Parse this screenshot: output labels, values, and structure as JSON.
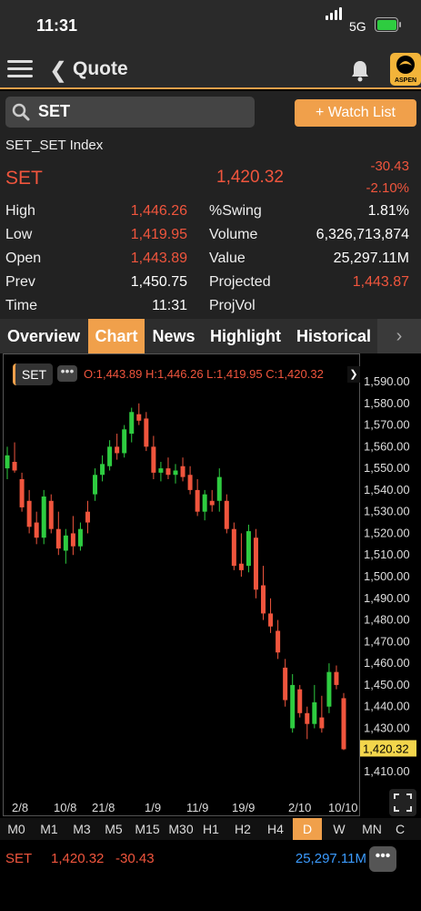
{
  "status": {
    "time": "11:31",
    "network": "5G"
  },
  "nav": {
    "title": "Quote",
    "logo_text": "ASPEN"
  },
  "search": {
    "value": "SET"
  },
  "watch_button": "+ Watch List",
  "quote": {
    "index_name": "SET_SET Index",
    "symbol": "SET",
    "last": "1,420.32",
    "change": "-30.43",
    "change_pct": "-2.10%",
    "left": [
      {
        "label": "High",
        "value": "1,446.26",
        "color": "red"
      },
      {
        "label": "Low",
        "value": "1,419.95",
        "color": "red"
      },
      {
        "label": "Open",
        "value": "1,443.89",
        "color": "red"
      },
      {
        "label": "Prev",
        "value": "1,450.75",
        "color": "white"
      },
      {
        "label": "Time",
        "value": "11:31",
        "color": "white"
      }
    ],
    "right": [
      {
        "label": "%Swing",
        "value": "1.81%",
        "color": "white"
      },
      {
        "label": "Volume",
        "value": "6,326,713,874",
        "color": "white"
      },
      {
        "label": "Value",
        "value": "25,297.11M",
        "color": "white"
      },
      {
        "label": "Projected",
        "value": "1,443.87",
        "color": "red"
      },
      {
        "label": "ProjVol",
        "value": "",
        "color": "white"
      }
    ]
  },
  "tabs": [
    "Overview",
    "Chart",
    "News",
    "Highlight",
    "Historical"
  ],
  "active_tab": "Chart",
  "legend": {
    "symbol": "SET",
    "more": "•••",
    "ohlc": "O:1,443.89 H:1,446.26 L:1,419.95 C:1,420.32"
  },
  "chart_data": {
    "type": "candlestick",
    "ylim": [
      1400,
      1595
    ],
    "y_ticks": [
      "1,590.00",
      "1,580.00",
      "1,570.00",
      "1,560.00",
      "1,550.00",
      "1,540.00",
      "1,530.00",
      "1,520.00",
      "1,510.00",
      "1,500.00",
      "1,490.00",
      "1,480.00",
      "1,470.00",
      "1,460.00",
      "1,450.00",
      "1,440.00",
      "1,430.00",
      "1,420.00",
      "1,410.00"
    ],
    "x_ticks": [
      "2/8",
      "10/8",
      "21/8",
      "1/9",
      "11/9",
      "19/9",
      "2/10",
      "10/10"
    ],
    "last_price_label": "1,420.32",
    "colors": {
      "up": "#2ecc40",
      "down": "#f0553d",
      "last_label_bg": "#f3d64c"
    },
    "candles": [
      {
        "o": 1550,
        "h": 1560,
        "l": 1545,
        "c": 1556
      },
      {
        "o": 1553,
        "h": 1562,
        "l": 1548,
        "c": 1549
      },
      {
        "o": 1545,
        "h": 1548,
        "l": 1530,
        "c": 1532
      },
      {
        "o": 1535,
        "h": 1540,
        "l": 1520,
        "c": 1523
      },
      {
        "o": 1525,
        "h": 1530,
        "l": 1515,
        "c": 1518
      },
      {
        "o": 1518,
        "h": 1540,
        "l": 1515,
        "c": 1537
      },
      {
        "o": 1535,
        "h": 1538,
        "l": 1520,
        "c": 1522
      },
      {
        "o": 1522,
        "h": 1530,
        "l": 1510,
        "c": 1513
      },
      {
        "o": 1512,
        "h": 1522,
        "l": 1506,
        "c": 1519
      },
      {
        "o": 1520,
        "h": 1528,
        "l": 1510,
        "c": 1514
      },
      {
        "o": 1514,
        "h": 1525,
        "l": 1512,
        "c": 1522
      },
      {
        "o": 1530,
        "h": 1535,
        "l": 1520,
        "c": 1525
      },
      {
        "o": 1538,
        "h": 1550,
        "l": 1535,
        "c": 1547
      },
      {
        "o": 1547,
        "h": 1556,
        "l": 1544,
        "c": 1552
      },
      {
        "o": 1551,
        "h": 1563,
        "l": 1549,
        "c": 1560
      },
      {
        "o": 1560,
        "h": 1566,
        "l": 1554,
        "c": 1557
      },
      {
        "o": 1557,
        "h": 1570,
        "l": 1555,
        "c": 1568
      },
      {
        "o": 1566,
        "h": 1578,
        "l": 1562,
        "c": 1576
      },
      {
        "o": 1575,
        "h": 1580,
        "l": 1570,
        "c": 1572
      },
      {
        "o": 1573,
        "h": 1576,
        "l": 1558,
        "c": 1560
      },
      {
        "o": 1560,
        "h": 1565,
        "l": 1545,
        "c": 1548
      },
      {
        "o": 1548,
        "h": 1553,
        "l": 1544,
        "c": 1550
      },
      {
        "o": 1550,
        "h": 1555,
        "l": 1545,
        "c": 1547
      },
      {
        "o": 1547,
        "h": 1552,
        "l": 1543,
        "c": 1549
      },
      {
        "o": 1551,
        "h": 1555,
        "l": 1544,
        "c": 1546
      },
      {
        "o": 1547,
        "h": 1551,
        "l": 1538,
        "c": 1540
      },
      {
        "o": 1540,
        "h": 1545,
        "l": 1528,
        "c": 1530
      },
      {
        "o": 1530,
        "h": 1540,
        "l": 1526,
        "c": 1538
      },
      {
        "o": 1535,
        "h": 1540,
        "l": 1530,
        "c": 1533
      },
      {
        "o": 1535,
        "h": 1550,
        "l": 1530,
        "c": 1546
      },
      {
        "o": 1535,
        "h": 1538,
        "l": 1520,
        "c": 1522
      },
      {
        "o": 1522,
        "h": 1525,
        "l": 1503,
        "c": 1505
      },
      {
        "o": 1506,
        "h": 1520,
        "l": 1500,
        "c": 1503
      },
      {
        "o": 1505,
        "h": 1524,
        "l": 1502,
        "c": 1521
      },
      {
        "o": 1518,
        "h": 1522,
        "l": 1490,
        "c": 1494
      },
      {
        "o": 1496,
        "h": 1505,
        "l": 1480,
        "c": 1483
      },
      {
        "o": 1483,
        "h": 1490,
        "l": 1474,
        "c": 1477
      },
      {
        "o": 1475,
        "h": 1480,
        "l": 1462,
        "c": 1465
      },
      {
        "o": 1458,
        "h": 1462,
        "l": 1440,
        "c": 1443
      },
      {
        "o": 1430,
        "h": 1455,
        "l": 1428,
        "c": 1450
      },
      {
        "o": 1448,
        "h": 1450,
        "l": 1435,
        "c": 1437
      },
      {
        "o": 1437,
        "h": 1440,
        "l": 1425,
        "c": 1432
      },
      {
        "o": 1432,
        "h": 1450,
        "l": 1430,
        "c": 1442
      },
      {
        "o": 1435,
        "h": 1445,
        "l": 1428,
        "c": 1430
      },
      {
        "o": 1440,
        "h": 1460,
        "l": 1437,
        "c": 1456
      },
      {
        "o": 1456,
        "h": 1459,
        "l": 1448,
        "c": 1450
      },
      {
        "o": 1443.89,
        "h": 1446.26,
        "l": 1419.95,
        "c": 1420.32
      }
    ]
  },
  "intervals": [
    "M0",
    "M1",
    "M3",
    "M5",
    "M15",
    "M30",
    "H1",
    "H2",
    "H4",
    "D",
    "W",
    "MN",
    "C"
  ],
  "active_interval": "D",
  "bottom": {
    "symbol": "SET",
    "last": "1,420.32",
    "change": "-30.43",
    "value": "25,297.11M",
    "more": "•••"
  }
}
